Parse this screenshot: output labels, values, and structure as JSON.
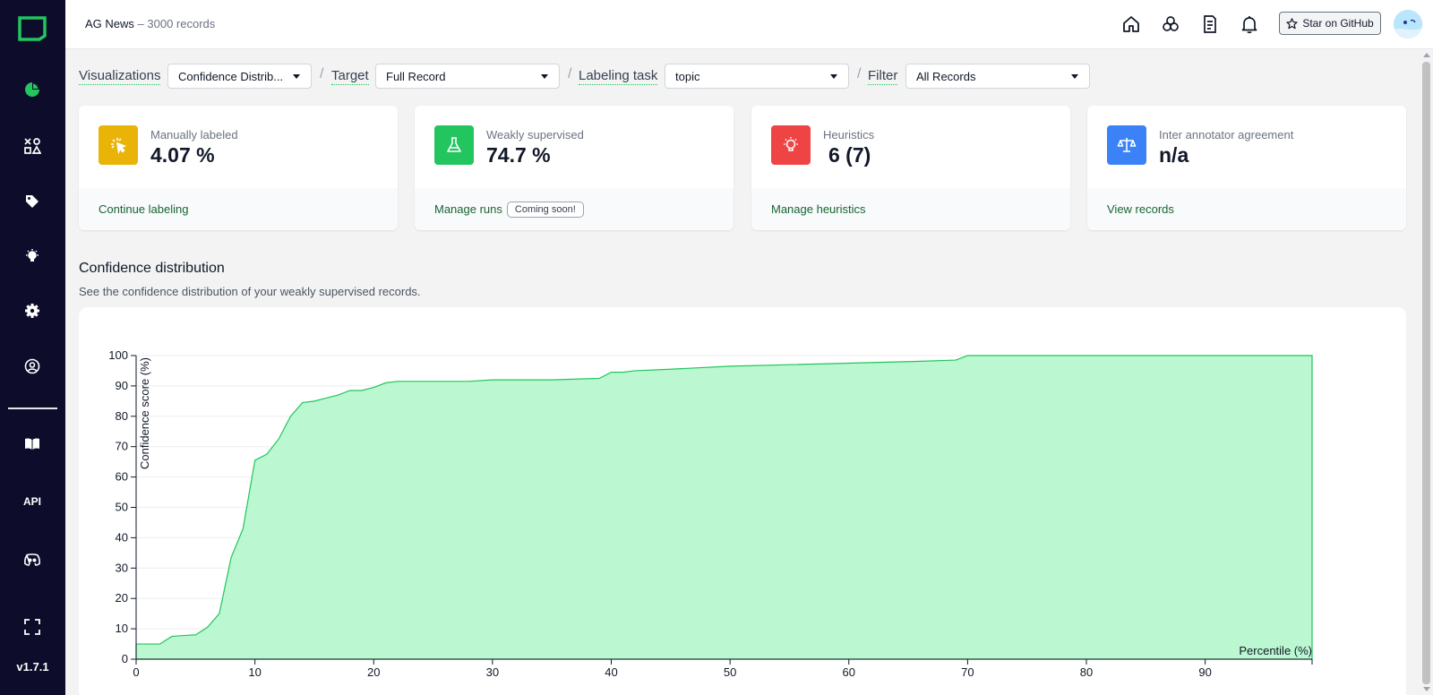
{
  "app": {
    "version": "v1.7.1",
    "accent": "#22c55e"
  },
  "sidebar": {
    "items": [
      {
        "name": "overview",
        "icon": "pie-chart-icon"
      },
      {
        "name": "labeling",
        "icon": "shapes-icon"
      },
      {
        "name": "labels",
        "icon": "tag-icon"
      },
      {
        "name": "heuristics",
        "icon": "lightbulb-icon"
      },
      {
        "name": "settings",
        "icon": "gear-icon"
      },
      {
        "name": "account",
        "icon": "user-circle-icon"
      },
      {
        "name": "docs",
        "icon": "book-icon"
      },
      {
        "name": "api",
        "icon": "api-icon",
        "label": "API"
      },
      {
        "name": "discord",
        "icon": "discord-icon"
      },
      {
        "name": "fullscreen",
        "icon": "fullscreen-icon"
      }
    ]
  },
  "header": {
    "project": "AG News",
    "separator": "–",
    "records": "3000 records",
    "github_label": "Star on GitHub",
    "icons": [
      "home-icon",
      "network-icon",
      "document-icon",
      "bell-icon"
    ]
  },
  "filters": {
    "visualizations_label": "Visualizations",
    "visualizations_value": "Confidence Distrib...",
    "target_label": "Target",
    "target_value": "Full Record",
    "task_label": "Labeling task",
    "task_value": "topic",
    "filter_label": "Filter",
    "filter_value": "All Records",
    "slash": "/"
  },
  "cards": [
    {
      "label": "Manually labeled",
      "value": "4.07 %",
      "link": "Continue labeling",
      "color": "#eab308",
      "icon": "cursor-click-icon"
    },
    {
      "label": "Weakly supervised",
      "value": "74.7 %",
      "link": "Manage runs",
      "badge": "Coming soon!",
      "color": "#22c55e",
      "icon": "flask-icon"
    },
    {
      "label": "Heuristics",
      "value": "6 (7)",
      "link": "Manage heuristics",
      "color": "#ef4444",
      "icon": "lightbulb-icon"
    },
    {
      "label": "Inter annotator agreement",
      "value": "n/a",
      "link": "View records",
      "color": "#3b82f6",
      "icon": "scale-icon"
    }
  ],
  "section": {
    "title": "Confidence distribution",
    "subtitle": "See the confidence distribution of your weakly supervised records."
  },
  "chart_data": {
    "type": "area",
    "xlabel": "Percentile (%)",
    "ylabel": "Confidence score (%)",
    "xlim": [
      0,
      99
    ],
    "ylim": [
      0,
      100
    ],
    "xticks": [
      0,
      10,
      20,
      30,
      40,
      50,
      60,
      70,
      80,
      90
    ],
    "yticks": [
      0,
      10,
      20,
      30,
      40,
      50,
      60,
      70,
      80,
      90,
      100
    ],
    "fill": "#bbf7d0",
    "stroke": "#22c55e",
    "x": [
      0,
      1,
      2,
      3,
      4,
      5,
      6,
      7,
      8,
      9,
      10,
      11,
      12,
      13,
      14,
      15,
      16,
      17,
      18,
      19,
      20,
      21,
      22,
      25,
      28,
      30,
      35,
      39,
      40,
      41,
      42,
      45,
      50,
      55,
      60,
      65,
      69,
      70,
      75,
      80,
      90,
      99
    ],
    "y": [
      5,
      5,
      5,
      7.5,
      7.8,
      8,
      10.5,
      15,
      33.5,
      43,
      65.5,
      67.5,
      72.5,
      80,
      84.5,
      85,
      86,
      87,
      88.5,
      88.5,
      89.5,
      91,
      91.5,
      91.5,
      91.5,
      92,
      92,
      92.5,
      94.5,
      94.5,
      95,
      95.5,
      96.5,
      97,
      97.5,
      98,
      98.5,
      100,
      100,
      100,
      100,
      100
    ]
  }
}
